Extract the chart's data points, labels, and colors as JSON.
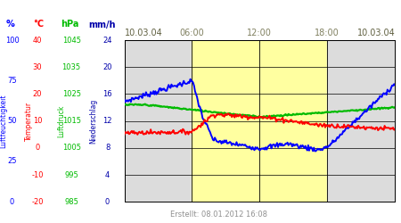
{
  "title_left": "10.03.04",
  "title_right": "10.03.04",
  "created": "Erstellt: 08.01.2012 16:08",
  "x_ticks": [
    "06:00",
    "12:00",
    "18:00"
  ],
  "x_tick_positions": [
    0.25,
    0.5,
    0.75
  ],
  "unit_labels": [
    {
      "text": "%",
      "color": "#0000FF",
      "fx": 0.025
    },
    {
      "text": "°C",
      "color": "#FF0000",
      "fx": 0.095
    },
    {
      "text": "hPa",
      "color": "#00BB00",
      "fx": 0.175
    },
    {
      "text": "mm/h",
      "color": "#0000AA",
      "fx": 0.255
    }
  ],
  "rotated_labels": [
    {
      "text": "Luftfeuchtigkeit",
      "color": "#0000FF",
      "fx": 0.008
    },
    {
      "text": "Temperatur",
      "color": "#FF0000",
      "fx": 0.072
    },
    {
      "text": "Luftdruck",
      "color": "#00BB00",
      "fx": 0.152
    },
    {
      "text": "Niederschlag",
      "color": "#0000AA",
      "fx": 0.232
    }
  ],
  "hum_ticks": [
    0,
    25,
    50,
    75,
    100
  ],
  "temp_ticks": [
    -20,
    -10,
    0,
    10,
    20,
    30,
    40
  ],
  "press_ticks": [
    985,
    995,
    1005,
    1015,
    1025,
    1035,
    1045
  ],
  "precip_ticks": [
    0,
    4,
    8,
    12,
    16,
    20,
    24
  ],
  "hum_color": "#0000FF",
  "temp_color": "#FF0000",
  "press_color": "#00BB00",
  "precip_color": "#0000AA",
  "date_color": "#606040",
  "bg_gray": "#DCDCDC",
  "bg_yellow": "#FFFFA0",
  "bg_plot": "#F4F4F4",
  "grid_color": "#000000",
  "footer_color": "#909090",
  "temp_min": -20,
  "temp_max": 40,
  "press_min": 985,
  "press_max": 1045,
  "precip_min": 0,
  "precip_max": 24,
  "hum_min": 0,
  "hum_max": 100
}
